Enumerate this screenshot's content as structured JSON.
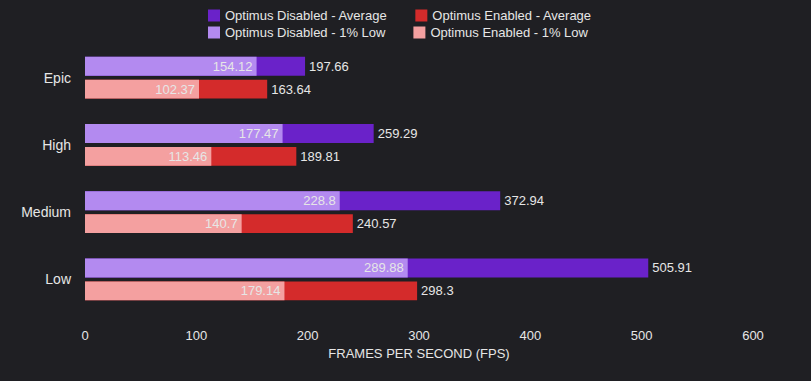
{
  "chart_data": {
    "type": "bar",
    "orientation": "horizontal",
    "categories": [
      "Epic",
      "High",
      "Medium",
      "Low"
    ],
    "series": [
      {
        "name": "Optimus Disabled - Average",
        "color": "#6a22c9",
        "values": [
          197.66,
          259.29,
          372.94,
          505.91
        ]
      },
      {
        "name": "Optimus Disabled - 1% Low",
        "color": "#b38af0",
        "values": [
          154.12,
          177.47,
          228.8,
          289.88
        ]
      },
      {
        "name": "Optimus Enabled - Average",
        "color": "#d42b2b",
        "values": [
          163.64,
          189.81,
          240.57,
          298.3
        ]
      },
      {
        "name": "Optimus Enabled - 1% Low",
        "color": "#f4a0a0",
        "values": [
          102.37,
          113.46,
          140.7,
          179.14
        ]
      }
    ],
    "xlabel": "FRAMES PER SECOND (FPS)",
    "xlim": [
      0,
      600
    ],
    "xticks": [
      0,
      100,
      200,
      300,
      400,
      500,
      600
    ],
    "data_labels": true,
    "grid": false,
    "legend": "top"
  }
}
